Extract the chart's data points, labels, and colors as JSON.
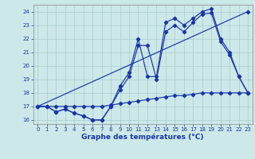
{
  "xlabel": "Graphe des températures (°C)",
  "xlim": [
    -0.5,
    23.5
  ],
  "ylim": [
    15.7,
    24.5
  ],
  "xticks": [
    0,
    1,
    2,
    3,
    4,
    5,
    6,
    7,
    8,
    9,
    10,
    11,
    12,
    13,
    14,
    15,
    16,
    17,
    18,
    19,
    20,
    21,
    22,
    23
  ],
  "yticks": [
    16,
    17,
    18,
    19,
    20,
    21,
    22,
    23,
    24
  ],
  "bg_color": "#cce8e8",
  "grid_color": "#aacccc",
  "line_color": "#1a35a8",
  "lines": [
    {
      "x": [
        0,
        1,
        2,
        3,
        4,
        5,
        6,
        7,
        8,
        9,
        10,
        11,
        12,
        13,
        14,
        15,
        16,
        17,
        18,
        19,
        20,
        21,
        22,
        23
      ],
      "y": [
        17,
        17,
        17,
        17,
        17,
        17,
        17,
        17,
        17.1,
        17.2,
        17.3,
        17.4,
        17.5,
        17.6,
        17.7,
        17.8,
        17.8,
        17.9,
        18.0,
        18.0,
        18.0,
        18.0,
        18.0,
        18.0
      ]
    },
    {
      "x": [
        0,
        1,
        2,
        3,
        4,
        5,
        6,
        7,
        8,
        9,
        10,
        11,
        12,
        13,
        14,
        15,
        16,
        17,
        18,
        19,
        20,
        21,
        22,
        23
      ],
      "y": [
        17,
        17,
        16.6,
        16.8,
        16.5,
        16.3,
        16.0,
        16.0,
        17.0,
        18.5,
        19.5,
        22.0,
        19.2,
        19.2,
        23.2,
        23.5,
        23.0,
        23.5,
        24.0,
        24.2,
        22.0,
        21.0,
        19.2,
        18.0
      ]
    },
    {
      "x": [
        0,
        23
      ],
      "y": [
        17,
        24
      ]
    },
    {
      "x": [
        0,
        1,
        2,
        3,
        4,
        5,
        6,
        7,
        8,
        9,
        10,
        11,
        12,
        13,
        14,
        15,
        16,
        17,
        18,
        19,
        20,
        21,
        22,
        23
      ],
      "y": [
        17,
        17,
        16.6,
        16.8,
        16.5,
        16.3,
        16.0,
        16.0,
        17.0,
        18.2,
        19.2,
        21.5,
        21.5,
        19.0,
        22.5,
        23.0,
        22.5,
        23.2,
        23.8,
        23.9,
        21.8,
        20.8,
        19.2,
        18.0
      ]
    }
  ]
}
